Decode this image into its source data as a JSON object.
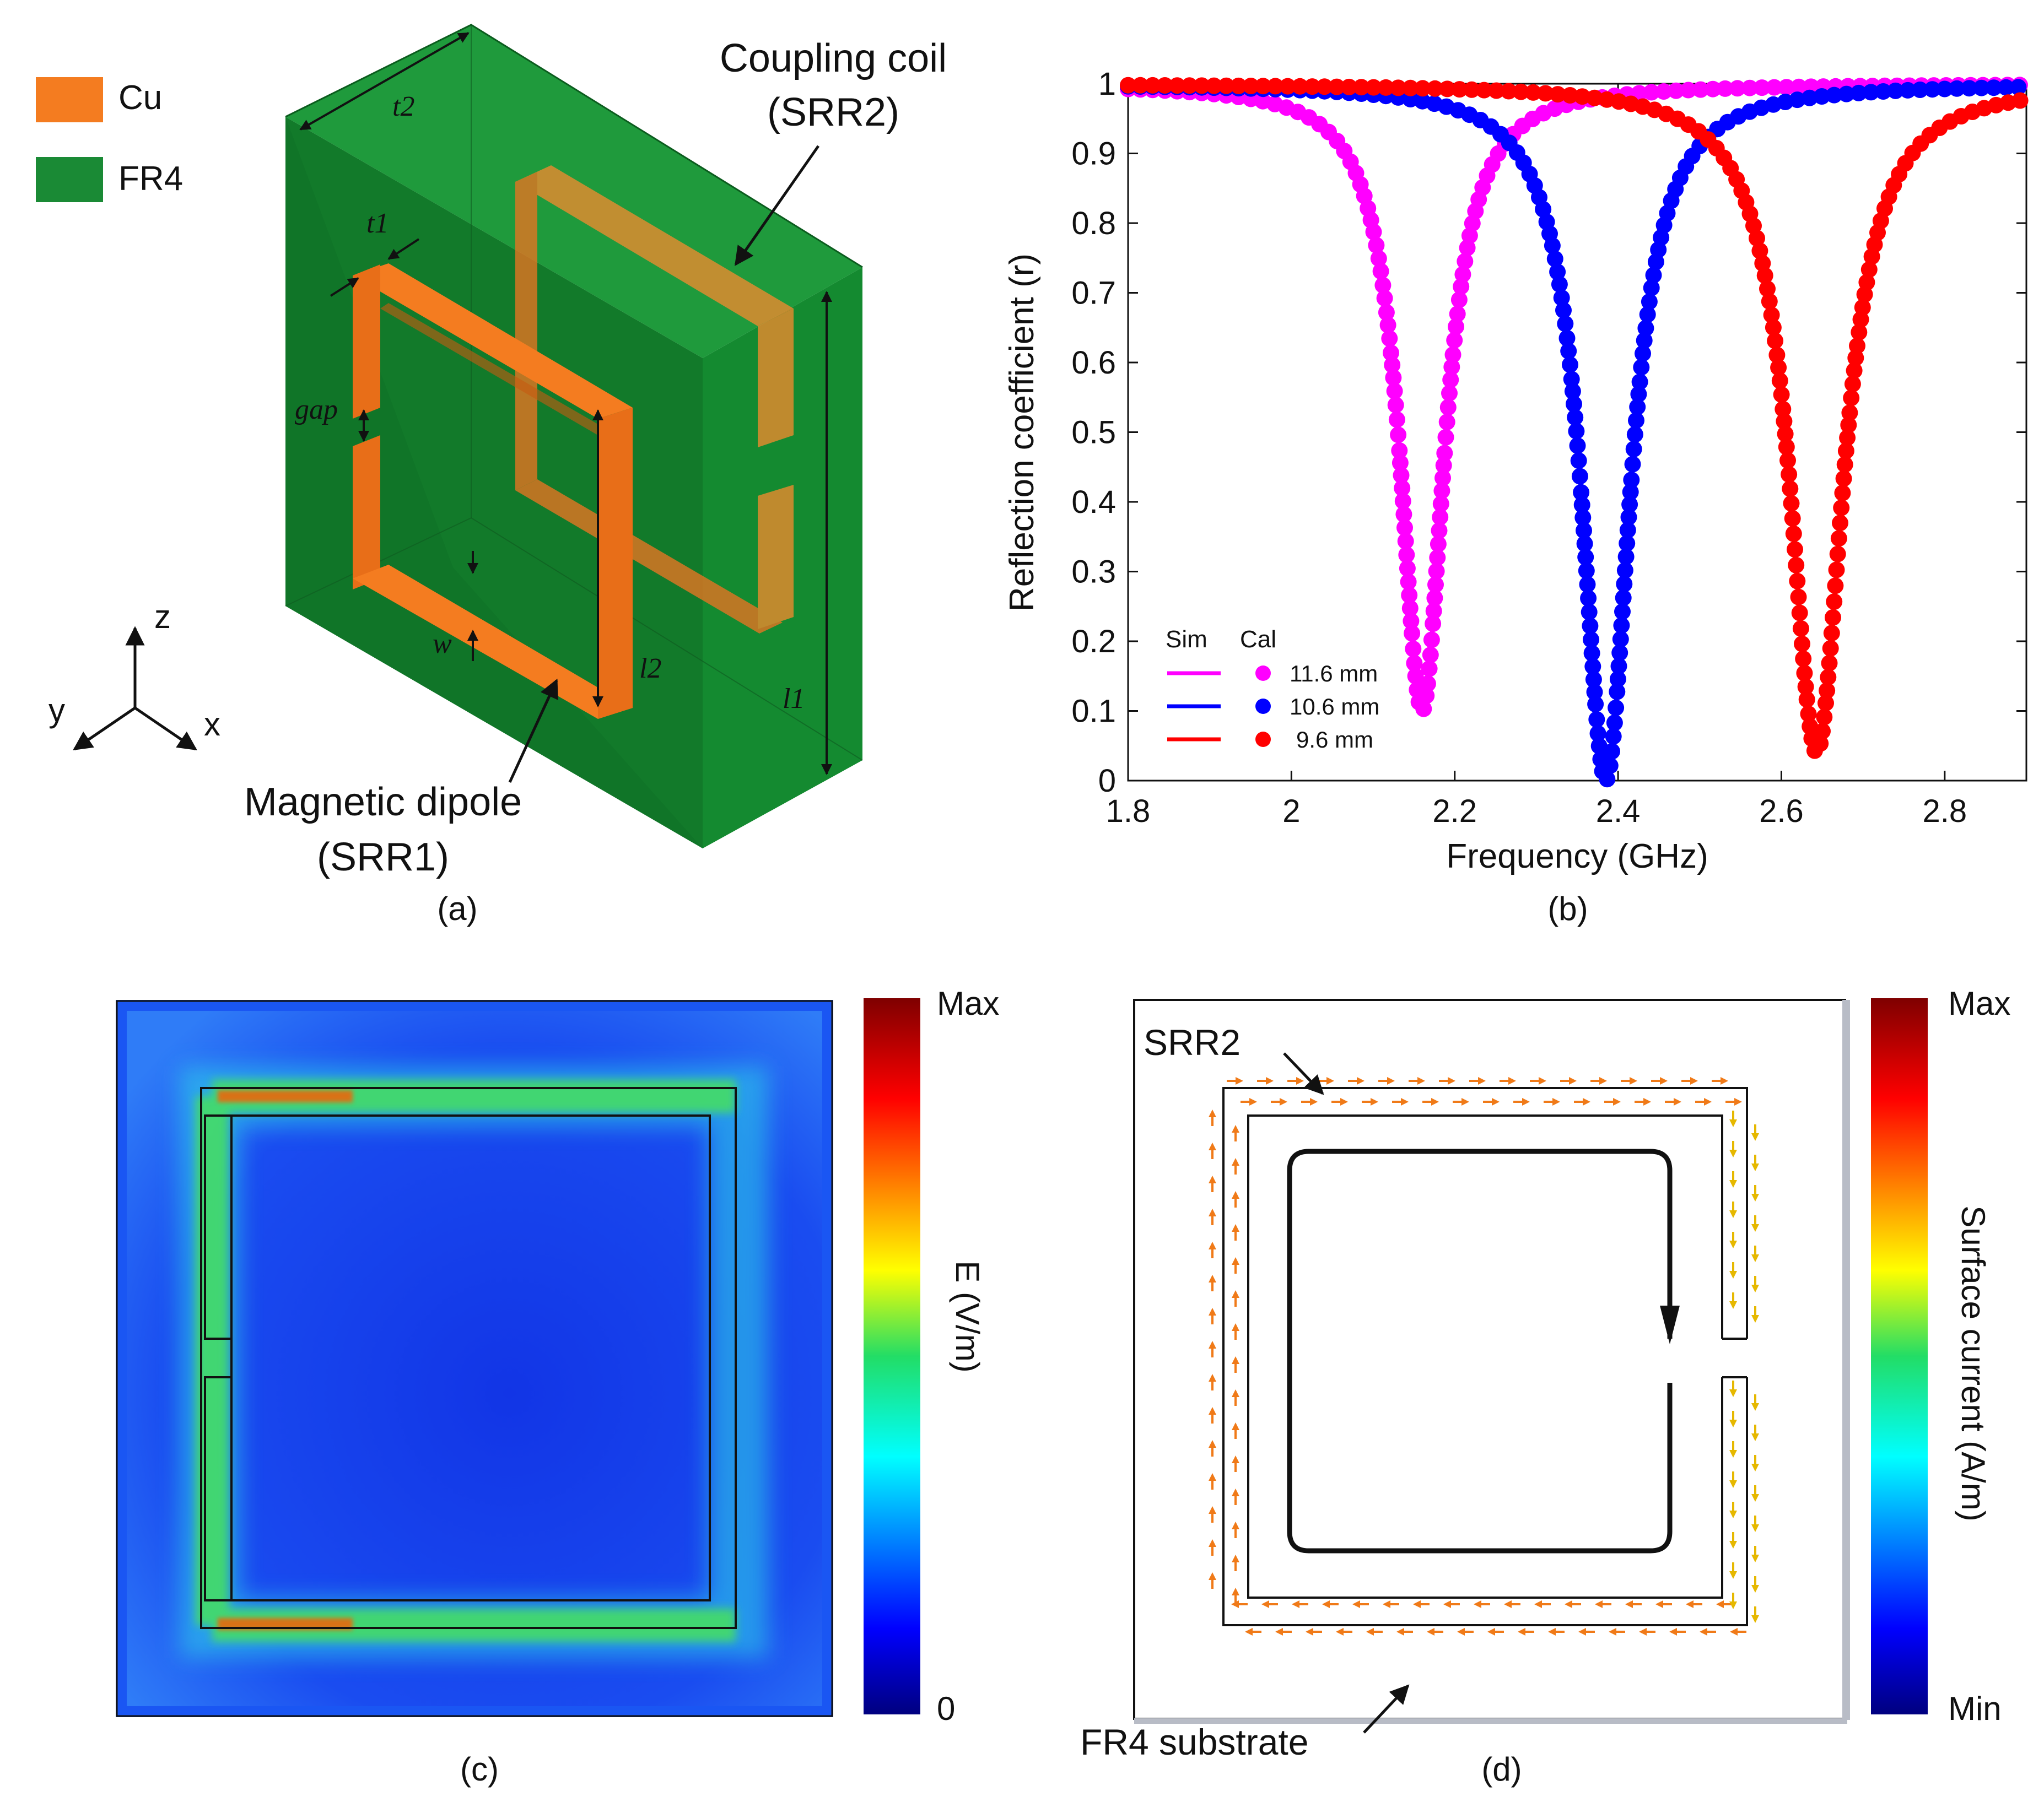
{
  "panel_a": {
    "legend": [
      {
        "label": "Cu",
        "color": "#f47c20"
      },
      {
        "label": "FR4",
        "color": "#1a8a35"
      }
    ],
    "callouts": {
      "coupling_line1": "Coupling coil",
      "coupling_line2": "(SRR2)",
      "dipole_line1": "Magnetic dipole",
      "dipole_line2": "(SRR1)"
    },
    "dims": {
      "t2": "t2",
      "t1": "t1",
      "gap": "gap",
      "w": "w",
      "l2": "l2",
      "l1": "l1"
    },
    "axes": {
      "z": "z",
      "y": "y",
      "x": "x"
    },
    "caption": "(a)"
  },
  "panel_b": {
    "caption": "(b)",
    "legend": {
      "sim_header": "Sim",
      "cal_header": "Cal",
      "entries": [
        {
          "label": "11.6 mm",
          "color": "#ff00ff"
        },
        {
          "label": "10.6 mm",
          "color": "#0000ff"
        },
        {
          "label": "9.6 mm",
          "color": "#ff0000"
        }
      ]
    }
  },
  "chart_data": {
    "type": "line",
    "title": "",
    "xlabel": "Frequency (GHz)",
    "ylabel": "Reflection coefficient (r)",
    "xlim": [
      1.8,
      2.9
    ],
    "ylim": [
      0,
      1
    ],
    "xticks": [
      "1.8",
      "2",
      "2.2",
      "2.4",
      "2.6",
      "2.8"
    ],
    "yticks": [
      "0",
      "0.1",
      "0.2",
      "0.3",
      "0.4",
      "0.5",
      "0.6",
      "0.7",
      "0.8",
      "0.9",
      "1"
    ],
    "grid": false,
    "legend_position": "bottom-left",
    "series": [
      {
        "name": "11.6 mm",
        "color": "#ff00ff",
        "f0": 2.16,
        "rmin": 0.1,
        "q": 0.033
      },
      {
        "name": "10.6 mm",
        "color": "#0000ff",
        "f0": 2.385,
        "rmin": 0.0,
        "q": 0.036
      },
      {
        "name": "9.6 mm",
        "color": "#ff0000",
        "f0": 2.643,
        "rmin": 0.04,
        "q": 0.04
      }
    ]
  },
  "panel_c": {
    "colorbar_top": "Max",
    "colorbar_bottom": "0",
    "colorbar_label": "E (V/m)",
    "caption": "(c)"
  },
  "panel_d": {
    "srr2_label": "SRR2",
    "substrate_label": "FR4 substrate",
    "colorbar_top": "Max",
    "colorbar_bottom": "Min",
    "colorbar_label": "Surface current (A/m)",
    "caption": "(d)"
  }
}
